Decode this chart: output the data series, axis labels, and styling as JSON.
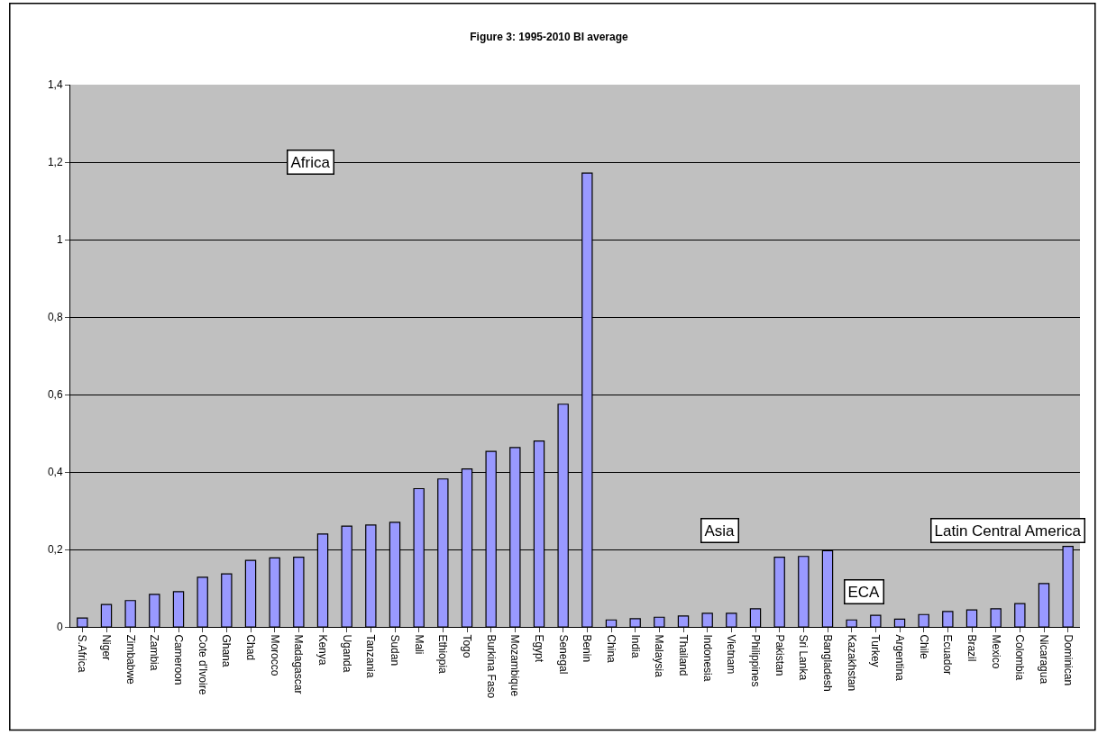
{
  "chart_data": {
    "type": "bar",
    "title": "Figure 3: 1995-2010 BI average",
    "categories": [
      "S.Africa",
      "Niger",
      "Zimbabwe",
      "Zambia",
      "Cameroon",
      "Cote d'Ivoire",
      "Ghana",
      "Chad",
      "Morocco",
      "Madagascar",
      "Kenya",
      "Uganda",
      "Tanzania",
      "Sudan",
      "Mali",
      "Ethiopia",
      "Togo",
      "Burkina Faso",
      "Mozambique",
      "Egypt",
      "Senegal",
      "Benin",
      "China",
      "India",
      "Malaysia",
      "Thailand",
      "Indonesia",
      "Vietnam",
      "Philippines",
      "Pakistan",
      "Sri Lanka",
      "Bangladesh",
      "Kazakhstan",
      "Turkey",
      "Argentina",
      "Chile",
      "Ecuador",
      "Brazil",
      "Mexico",
      "Colombia",
      "Nicaragua",
      "Dominican"
    ],
    "values": [
      0.023,
      0.058,
      0.068,
      0.084,
      0.091,
      0.128,
      0.137,
      0.172,
      0.178,
      0.18,
      0.24,
      0.26,
      0.263,
      0.27,
      0.357,
      0.382,
      0.408,
      0.453,
      0.463,
      0.48,
      0.575,
      1.172,
      0.018,
      0.021,
      0.025,
      0.028,
      0.035,
      0.035,
      0.047,
      0.18,
      0.182,
      0.197,
      0.018,
      0.03,
      0.02,
      0.032,
      0.04,
      0.044,
      0.047,
      0.06,
      0.112,
      0.208
    ],
    "color": "#9999ff",
    "ylim": [
      0,
      1.4
    ],
    "yticks": [
      0,
      {
        "value": 0.2,
        "label": "0,2"
      },
      {
        "value": 0.4,
        "label": "0,4"
      },
      {
        "value": 0.6,
        "label": "0,6"
      },
      {
        "value": 0.8,
        "label": "0,8"
      },
      1,
      {
        "value": 1.2,
        "label": "1,2"
      },
      {
        "value": 1.4,
        "label": "1,4"
      }
    ],
    "grid": "y",
    "legend": false,
    "annotations": [
      "Africa",
      "Asia",
      "ECA",
      "Latin Central America"
    ]
  }
}
